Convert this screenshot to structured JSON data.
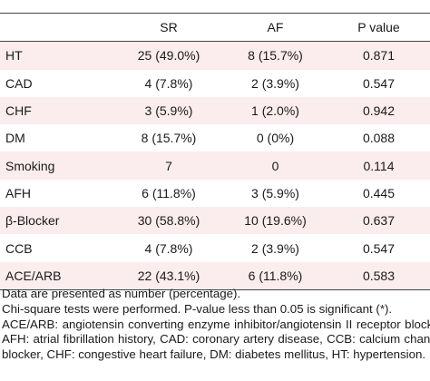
{
  "table": {
    "columns": [
      "",
      "SR",
      "AF",
      "P value"
    ],
    "rows": [
      {
        "label": "HT",
        "sr": "25 (49.0%)",
        "af": "8 (15.7%)",
        "p": "0.871"
      },
      {
        "label": "CAD",
        "sr": "4 (7.8%)",
        "af": "2 (3.9%)",
        "p": "0.547"
      },
      {
        "label": "CHF",
        "sr": "3 (5.9%)",
        "af": "1 (2.0%)",
        "p": "0.942"
      },
      {
        "label": "DM",
        "sr": "8 (15.7%)",
        "af": "0 (0%)",
        "p": "0.088"
      },
      {
        "label": "Smoking",
        "sr": "7",
        "af": "0",
        "p": "0.114"
      },
      {
        "label": "AFH",
        "sr": "6 (11.8%)",
        "af": "3 (5.9%)",
        "p": "0.445"
      },
      {
        "label": "β-Blocker",
        "sr": "30 (58.8%)",
        "af": "10 (19.6%)",
        "p": "0.637"
      },
      {
        "label": "CCB",
        "sr": "4 (7.8%)",
        "af": "2 (3.9%)",
        "p": "0.547"
      },
      {
        "label": "ACE/ARB",
        "sr": "22 (43.1%)",
        "af": "6 (11.8%)",
        "p": "0.583"
      }
    ]
  },
  "notes": {
    "line1": "Data are presented as number (percentage).",
    "line2": "Chi-square tests were performed. P-value less than 0.05 is significant (*).",
    "line3": "ACE/ARB: angiotensin converting enzyme inhibitor/angiotensin II receptor blocker, AFH: atrial fibrillation history, CAD: coronary artery disease, CCB: calcium channel blocker, CHF: congestive heart failure, DM: diabetes mellitus, HT: hypertension."
  },
  "colors": {
    "row_stripe": "#fbeced",
    "rule": "#444444"
  }
}
